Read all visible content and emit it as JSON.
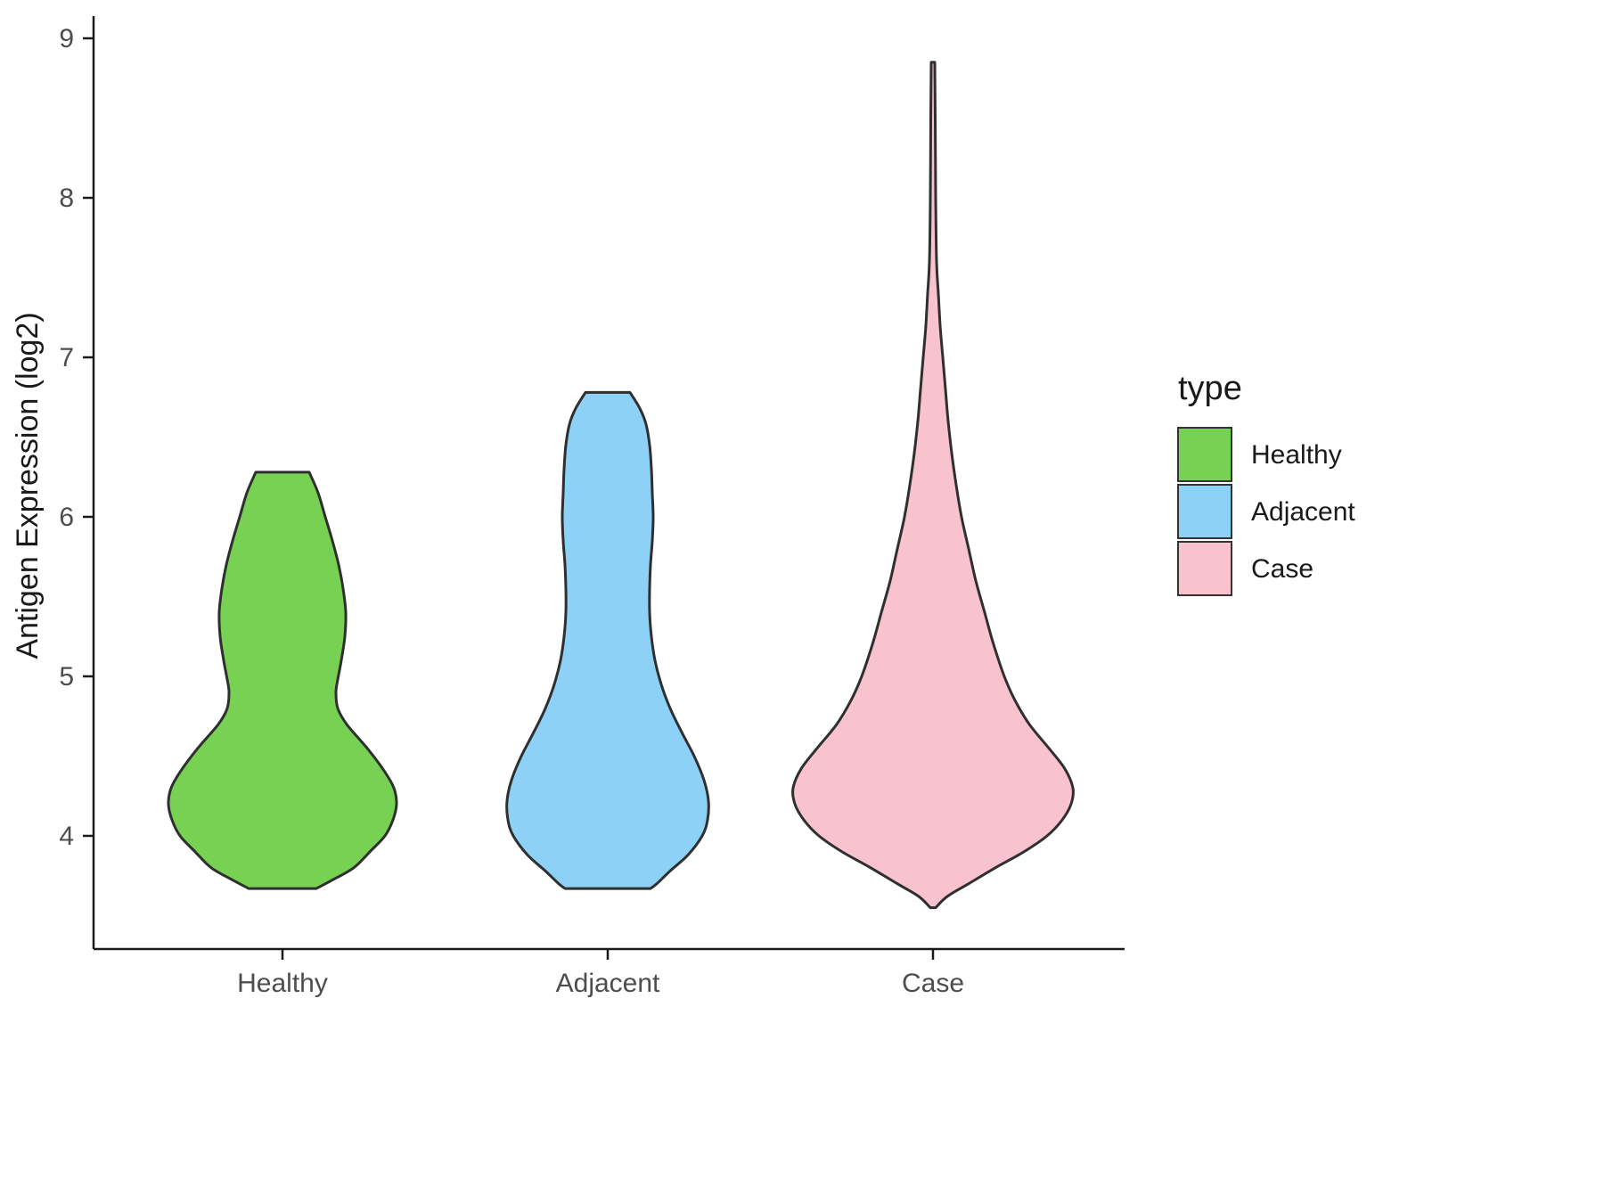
{
  "chart_data": {
    "type": "violin",
    "title": "",
    "xlabel": "",
    "ylabel": "Antigen Expression (log2)",
    "categories": [
      "Healthy",
      "Adjacent",
      "Case"
    ],
    "y_ticks": [
      4,
      5,
      6,
      7,
      8,
      9
    ],
    "ylim": [
      3.4,
      9.1
    ],
    "grid": "off",
    "legend": {
      "title": "type",
      "position": "right",
      "entries": [
        {
          "label": "Healthy",
          "color": "#77D153"
        },
        {
          "label": "Adjacent",
          "color": "#8DD2F6"
        },
        {
          "label": "Case",
          "color": "#F8C3CE"
        }
      ]
    },
    "stroke_color": "#2f2f2f",
    "series": [
      {
        "name": "Healthy",
        "color": "#77D153",
        "flat_ends": true,
        "range": [
          3.67,
          6.28
        ],
        "profile": [
          [
            6.28,
            30
          ],
          [
            6.15,
            40
          ],
          [
            6.0,
            48
          ],
          [
            5.85,
            56
          ],
          [
            5.7,
            63
          ],
          [
            5.55,
            68
          ],
          [
            5.4,
            71
          ],
          [
            5.25,
            70
          ],
          [
            5.1,
            66
          ],
          [
            4.98,
            62
          ],
          [
            4.9,
            60
          ],
          [
            4.8,
            62
          ],
          [
            4.7,
            72
          ],
          [
            4.55,
            95
          ],
          [
            4.4,
            115
          ],
          [
            4.3,
            125
          ],
          [
            4.2,
            128
          ],
          [
            4.1,
            124
          ],
          [
            4.0,
            115
          ],
          [
            3.9,
            98
          ],
          [
            3.8,
            80
          ],
          [
            3.72,
            55
          ],
          [
            3.67,
            38
          ]
        ]
      },
      {
        "name": "Adjacent",
        "color": "#8DD2F6",
        "flat_ends": true,
        "range": [
          3.67,
          6.78
        ],
        "profile": [
          [
            6.78,
            25
          ],
          [
            6.68,
            36
          ],
          [
            6.58,
            43
          ],
          [
            6.45,
            47
          ],
          [
            6.3,
            49
          ],
          [
            6.15,
            50
          ],
          [
            6.0,
            51
          ],
          [
            5.85,
            50
          ],
          [
            5.7,
            48
          ],
          [
            5.55,
            47
          ],
          [
            5.4,
            47
          ],
          [
            5.25,
            49
          ],
          [
            5.1,
            53
          ],
          [
            4.95,
            60
          ],
          [
            4.8,
            70
          ],
          [
            4.65,
            83
          ],
          [
            4.5,
            97
          ],
          [
            4.35,
            108
          ],
          [
            4.22,
            113
          ],
          [
            4.1,
            112
          ],
          [
            4.0,
            106
          ],
          [
            3.88,
            90
          ],
          [
            3.78,
            70
          ],
          [
            3.7,
            55
          ],
          [
            3.67,
            48
          ]
        ]
      },
      {
        "name": "Case",
        "color": "#F8C3CE",
        "flat_ends": false,
        "range": [
          3.55,
          8.85
        ],
        "profile": [
          [
            8.85,
            2
          ],
          [
            8.5,
            2.5
          ],
          [
            8.0,
            3
          ],
          [
            7.6,
            4
          ],
          [
            7.4,
            6
          ],
          [
            7.2,
            8
          ],
          [
            7.0,
            11
          ],
          [
            6.8,
            14
          ],
          [
            6.6,
            17
          ],
          [
            6.4,
            21
          ],
          [
            6.2,
            26
          ],
          [
            6.0,
            32
          ],
          [
            5.8,
            40
          ],
          [
            5.6,
            48
          ],
          [
            5.4,
            58
          ],
          [
            5.2,
            68
          ],
          [
            5.0,
            80
          ],
          [
            4.85,
            92
          ],
          [
            4.7,
            108
          ],
          [
            4.55,
            130
          ],
          [
            4.42,
            148
          ],
          [
            4.3,
            157
          ],
          [
            4.2,
            155
          ],
          [
            4.1,
            145
          ],
          [
            4.0,
            128
          ],
          [
            3.9,
            102
          ],
          [
            3.8,
            70
          ],
          [
            3.7,
            40
          ],
          [
            3.62,
            16
          ],
          [
            3.55,
            3
          ]
        ]
      }
    ]
  }
}
